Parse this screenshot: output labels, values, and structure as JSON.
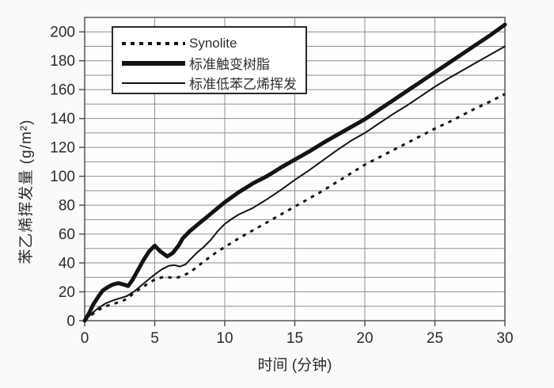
{
  "figure": {
    "background": "#fbfaf8"
  },
  "chart_data": {
    "type": "line",
    "title": "",
    "xlabel": "时间 (分钟)",
    "ylabel": "苯乙烯挥发量 (g/m²)",
    "xlim": [
      0,
      30
    ],
    "ylim": [
      0,
      210
    ],
    "x_ticks": [
      0,
      5,
      10,
      15,
      20,
      25,
      30
    ],
    "y_ticks": [
      0,
      20,
      40,
      60,
      80,
      100,
      120,
      140,
      160,
      180,
      200
    ],
    "x_grid_step": 5,
    "y_grid_step": 10,
    "grid": "on",
    "legend_position": "top-left-inside",
    "colors": {
      "line": "#141414",
      "grid": "#8f8f8f",
      "frame": "#4a4a4a",
      "text": "#2b2b2b",
      "legend_background": "#ffffff"
    },
    "series": [
      {
        "name": "Synolite",
        "style": "dotted",
        "stroke_width": 3,
        "dash": [
          4.5,
          6.5
        ],
        "z": 1,
        "points": [
          [
            0,
            0
          ],
          [
            0.5,
            4
          ],
          [
            1,
            7.5
          ],
          [
            1.5,
            10
          ],
          [
            2,
            11.5
          ],
          [
            2.5,
            13
          ],
          [
            3,
            15
          ],
          [
            3.5,
            19
          ],
          [
            4,
            22.5
          ],
          [
            4.5,
            25.5
          ],
          [
            5,
            28.5
          ],
          [
            5.5,
            30
          ],
          [
            6,
            30
          ],
          [
            6.5,
            29.5
          ],
          [
            7,
            31
          ],
          [
            7.5,
            33.5
          ],
          [
            8,
            37
          ],
          [
            8.5,
            41
          ],
          [
            9,
            44.5
          ],
          [
            9.5,
            48
          ],
          [
            10,
            51
          ],
          [
            11,
            57
          ],
          [
            12,
            62.5
          ],
          [
            13,
            68
          ],
          [
            14,
            73.5
          ],
          [
            15,
            79
          ],
          [
            16,
            84.5
          ],
          [
            17,
            90
          ],
          [
            18,
            96
          ],
          [
            19,
            102
          ],
          [
            20,
            108
          ],
          [
            21,
            113
          ],
          [
            22,
            118
          ],
          [
            23,
            123
          ],
          [
            24,
            128
          ],
          [
            25,
            133
          ],
          [
            26,
            137.5
          ],
          [
            27,
            142.5
          ],
          [
            28,
            147.5
          ],
          [
            29,
            152
          ],
          [
            30,
            157
          ]
        ]
      },
      {
        "name": "标准触变树脂",
        "style": "solid-thick",
        "stroke_width": 5,
        "dash": null,
        "z": 3,
        "points": [
          [
            0,
            0
          ],
          [
            0.3,
            5
          ],
          [
            0.6,
            11
          ],
          [
            1,
            17
          ],
          [
            1.3,
            21
          ],
          [
            1.7,
            23.5
          ],
          [
            2,
            25
          ],
          [
            2.4,
            26
          ],
          [
            2.8,
            25
          ],
          [
            3.1,
            24
          ],
          [
            3.4,
            28
          ],
          [
            3.8,
            35
          ],
          [
            4.2,
            42
          ],
          [
            4.6,
            48
          ],
          [
            5,
            52
          ],
          [
            5.4,
            48
          ],
          [
            5.9,
            44.5
          ],
          [
            6.3,
            47
          ],
          [
            6.7,
            52
          ],
          [
            7,
            57
          ],
          [
            7.5,
            62
          ],
          [
            8,
            66
          ],
          [
            8.5,
            70
          ],
          [
            9,
            74
          ],
          [
            9.5,
            78
          ],
          [
            10,
            82
          ],
          [
            11,
            89
          ],
          [
            12,
            95
          ],
          [
            13,
            100
          ],
          [
            14,
            106
          ],
          [
            15,
            111.5
          ],
          [
            16,
            117
          ],
          [
            17,
            123
          ],
          [
            18,
            128.5
          ],
          [
            19,
            134
          ],
          [
            20,
            139.5
          ],
          [
            21,
            146
          ],
          [
            22,
            152.5
          ],
          [
            23,
            159
          ],
          [
            24,
            165.5
          ],
          [
            25,
            172
          ],
          [
            26,
            178.5
          ],
          [
            27,
            185
          ],
          [
            28,
            191.5
          ],
          [
            29,
            198
          ],
          [
            30,
            205
          ]
        ]
      },
      {
        "name": "标准低苯乙烯挥发",
        "style": "solid-thin",
        "stroke_width": 2,
        "dash": null,
        "z": 2,
        "points": [
          [
            0,
            0
          ],
          [
            0.5,
            5
          ],
          [
            1,
            9
          ],
          [
            1.5,
            12
          ],
          [
            2,
            14
          ],
          [
            2.5,
            15.5
          ],
          [
            3,
            17
          ],
          [
            3.5,
            20
          ],
          [
            4,
            24
          ],
          [
            4.5,
            28
          ],
          [
            5,
            32
          ],
          [
            5.5,
            35.5
          ],
          [
            6,
            38
          ],
          [
            6.4,
            38.5
          ],
          [
            6.8,
            37.5
          ],
          [
            7.2,
            39
          ],
          [
            7.6,
            43
          ],
          [
            8,
            47
          ],
          [
            8.5,
            51
          ],
          [
            9,
            56
          ],
          [
            9.5,
            62
          ],
          [
            10,
            67
          ],
          [
            10.5,
            70.5
          ],
          [
            11,
            73.5
          ],
          [
            12,
            78
          ],
          [
            13,
            84
          ],
          [
            14,
            90.5
          ],
          [
            15,
            97.5
          ],
          [
            16,
            104
          ],
          [
            17,
            111
          ],
          [
            18,
            118
          ],
          [
            19,
            124.5
          ],
          [
            20,
            130
          ],
          [
            21,
            136.5
          ],
          [
            22,
            143
          ],
          [
            23,
            149
          ],
          [
            24,
            155.5
          ],
          [
            25,
            162
          ],
          [
            26,
            168
          ],
          [
            27,
            173.5
          ],
          [
            28,
            179
          ],
          [
            29,
            184.5
          ],
          [
            30,
            190
          ]
        ]
      }
    ],
    "legend": [
      {
        "label": "Synolite",
        "style": "dotted"
      },
      {
        "label": "标准触变树脂",
        "style": "solid-thick"
      },
      {
        "label": "标准低苯乙烯挥发",
        "style": "solid-thin"
      }
    ]
  }
}
